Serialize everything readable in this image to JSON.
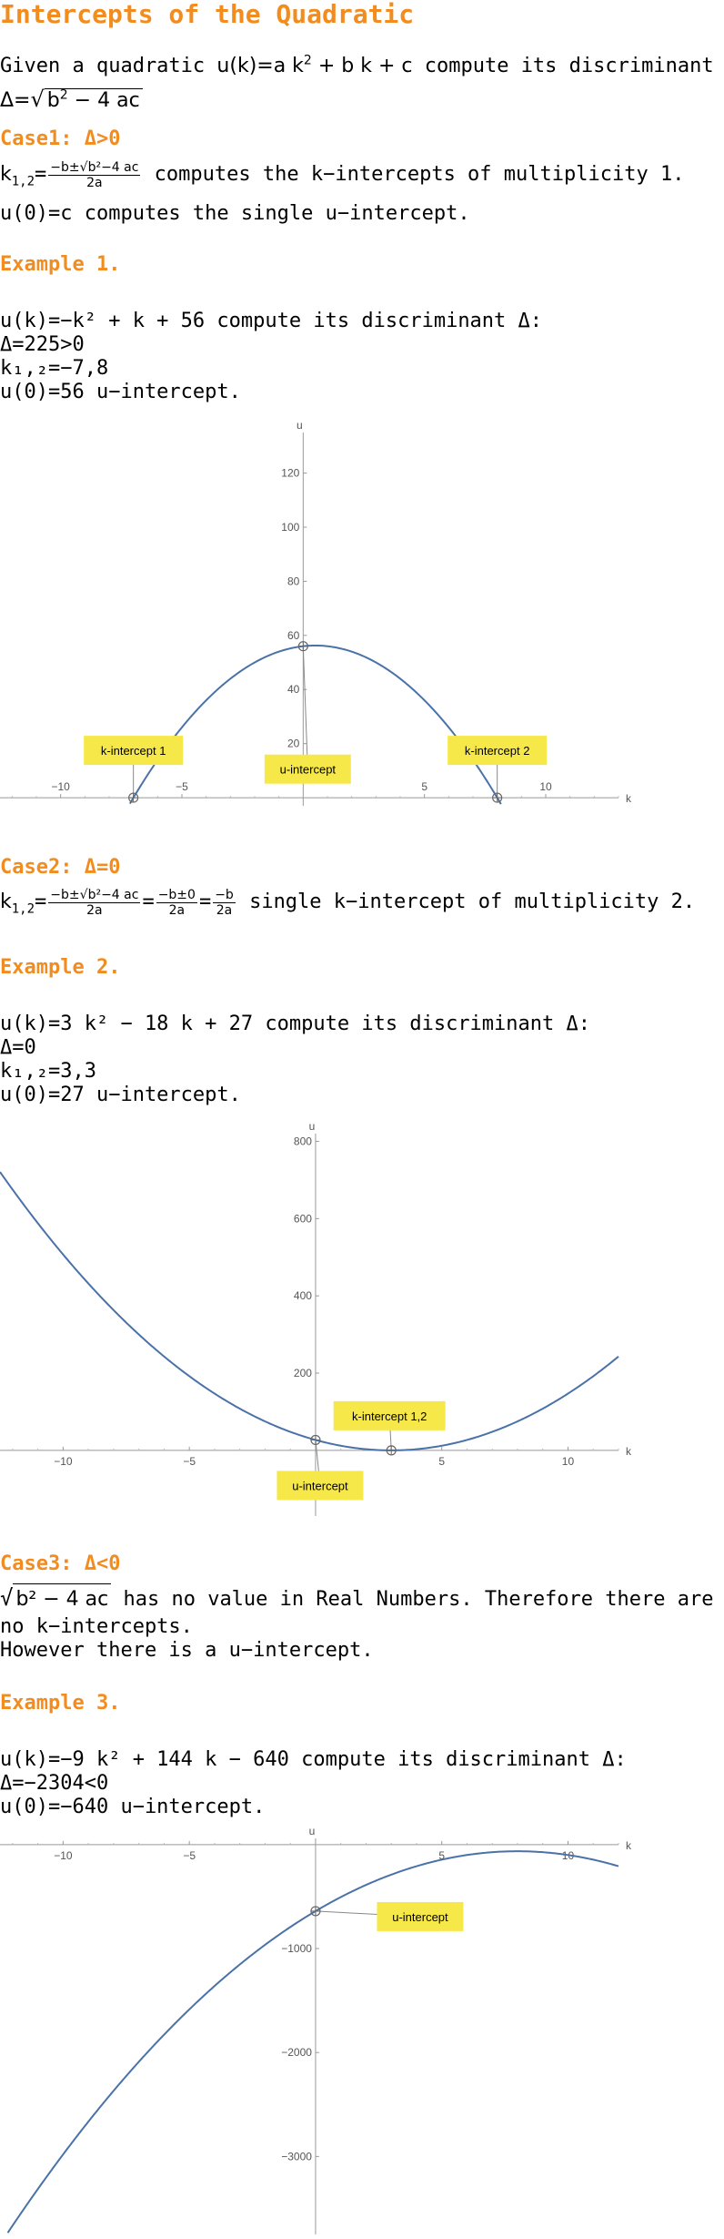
{
  "title": "Intercepts of the Quadratic",
  "intro": {
    "line1_pre": "Given a quadratic ",
    "line1_fn": "u(k)=a k",
    "line1_sq": "2",
    "line1_rest": " + b k + c",
    "line1_post": " compute its discriminant ",
    "delta": "Δ",
    "colon": ":",
    "disc_lhs": "Δ=",
    "disc_rad": "b",
    "disc_sq": "2",
    "disc_tail": " − 4 ac"
  },
  "case1": {
    "heading": "Case1: Δ>0",
    "k_lhs": "k",
    "k_sub": "1,2",
    "eq": "=",
    "frac_num": "−b±√b²−4 ac",
    "frac_den": "2a",
    "k_text": " computes the k−intercepts of multiplicity 1.",
    "u_text": "u(0)=c computes the single u−intercept."
  },
  "example1": {
    "heading": "Example 1.",
    "eq_line": "u(k)=−k² + k + 56 compute its discriminant Δ:",
    "disc_line": "Δ=225>0",
    "k_line": "k₁,₂=−7,8",
    "u_line": "u(0)=56  u−intercept."
  },
  "case2": {
    "heading": "Case2: Δ=0",
    "k_lhs": "k",
    "k_sub": "1,2",
    "f1_num": "−b±√b²−4 ac",
    "f1_den": "2a",
    "f2_num": "−b±0",
    "f2_den": "2a",
    "f3_num": "−b",
    "f3_den": "2a",
    "text": " single k−intercept of multiplicity 2."
  },
  "example2": {
    "heading": "Example 2.",
    "eq_line": "u(k)=3 k² − 18 k + 27 compute its discriminant Δ:",
    "disc_line": "Δ=0",
    "k_line": "k₁,₂=3,3",
    "u_line": "u(0)=27  u−intercept."
  },
  "case3": {
    "heading": "Case3: Δ<0",
    "sqrt_body": "b² − 4 ac",
    "line1_post": " has no value in Real Numbers. Therefore there are",
    "line2": "no k−intercepts.",
    "line3": "However there is a u−intercept."
  },
  "example3": {
    "heading": "Example 3.",
    "eq_line": "u(k)=−9 k² + 144 k − 640 compute its discriminant Δ:",
    "disc_line": "Δ=−2304<0",
    "u_line": "u(0)=−640 u−intercept."
  },
  "colors": {
    "heading": "#f28c1e",
    "curve": "#4a72a8",
    "label_bg": "#f7e84a",
    "axis": "#999999"
  },
  "chart_data": [
    {
      "type": "line",
      "function": "u(k) = -k^2 + k + 56",
      "coefficients": {
        "a": -1,
        "b": 1,
        "c": 56
      },
      "xlabel": "k",
      "ylabel": "u",
      "xlim": [
        -12.5,
        13
      ],
      "ylim": [
        -3,
        135
      ],
      "xticks": [
        -10,
        -5,
        5,
        10
      ],
      "yticks": [
        20,
        40,
        60,
        80,
        100,
        120
      ],
      "points": [
        {
          "label": "k-intercept 1",
          "x": -7,
          "y": 0
        },
        {
          "label": "k-intercept 2",
          "x": 8,
          "y": 0
        },
        {
          "label": "u-intercept",
          "x": 0,
          "y": 56
        }
      ]
    },
    {
      "type": "line",
      "function": "u(k) = 3k^2 - 18k + 27",
      "coefficients": {
        "a": 3,
        "b": -18,
        "c": 27
      },
      "xlabel": "k",
      "ylabel": "u",
      "xlim": [
        -12.5,
        12
      ],
      "ylim": [
        -170,
        820
      ],
      "xticks": [
        -10,
        -5,
        5,
        10
      ],
      "yticks": [
        200,
        400,
        600,
        800
      ],
      "points": [
        {
          "label": "k-intercept 1,2",
          "x": 3,
          "y": 0
        },
        {
          "label": "u-intercept",
          "x": 0,
          "y": 27
        }
      ]
    },
    {
      "type": "line",
      "function": "u(k) = -9k^2 + 144k - 640",
      "coefficients": {
        "a": -9,
        "b": 144,
        "c": -640
      },
      "xlabel": "k",
      "ylabel": "u",
      "xlim": [
        -12.5,
        12
      ],
      "ylim": [
        -3750,
        60
      ],
      "xticks": [
        -10,
        -5,
        5,
        10
      ],
      "yticks": [
        -1000,
        -2000,
        -3000
      ],
      "points": [
        {
          "label": "u-intercept",
          "x": 0,
          "y": -640
        }
      ]
    }
  ]
}
